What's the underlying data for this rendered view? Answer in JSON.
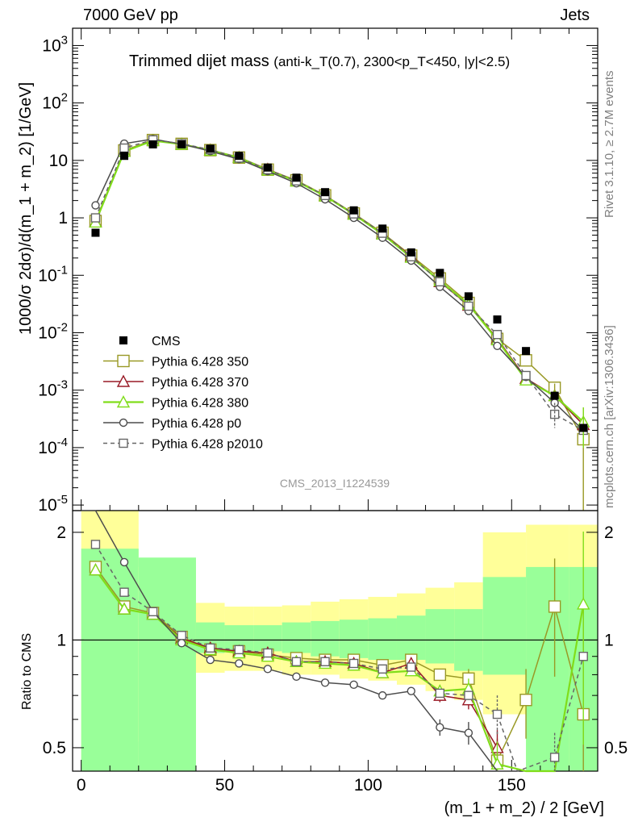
{
  "header": {
    "left": "7000 GeV pp",
    "right": "Jets",
    "title_main": "Trimmed dijet mass",
    "title_sub": "(anti-k_T(0.7), 2300<p_T<450, |y|<2.5)",
    "watermark": "CMS_2013_I1224539",
    "side_rivet": "Rivet 3.1.10, ≥ 2.7M events",
    "side_mcplots": "mcplots.cern.ch [arXiv:1306.3436]"
  },
  "axes": {
    "xlabel": "(m_1 + m_2) / 2 [GeV]",
    "ylabel_main": "1000/σ 2dσ)/d(m_1 + m_2) [1/GeV]",
    "ylabel_ratio": "Ratio to CMS"
  },
  "chart_data": {
    "type": "line",
    "x": [
      5,
      15,
      25,
      35,
      45,
      55,
      65,
      75,
      85,
      95,
      105,
      115,
      125,
      135,
      145,
      155,
      165,
      175
    ],
    "xlim": [
      -3,
      180
    ],
    "main_ylim": [
      8e-06,
      2000
    ],
    "main_yscale": "log",
    "main_yticks": [
      "10^-5",
      "10^-4",
      "10^-3",
      "10^-2",
      "10^-1",
      "1",
      "10",
      "10^2",
      "10^3"
    ],
    "ratio_ylim": [
      0.43,
      2.3
    ],
    "ratio_yticks": [
      "0.5",
      "1",
      "2"
    ],
    "xticks": [
      "0",
      "50",
      "100",
      "150"
    ],
    "reference": {
      "name": "CMS",
      "values": [
        0.55,
        12,
        19,
        19,
        16,
        12,
        7.5,
        5,
        2.8,
        1.35,
        0.65,
        0.25,
        0.11,
        0.043,
        0.017,
        0.0048,
        0.0008,
        0.00022
      ]
    },
    "series": [
      {
        "name": "Pythia 6.428 350",
        "color": "#999926",
        "marker": "square",
        "dash": false,
        "values": [
          0.88,
          14.9,
          22.6,
          19.4,
          15.1,
          11.2,
          6.9,
          4.5,
          2.46,
          1.19,
          0.55,
          0.22,
          0.088,
          0.033,
          0.0078,
          0.0033,
          0.0011,
          0.00014
        ],
        "ratio_x": [
          5,
          15,
          25,
          35,
          45,
          55,
          65,
          75,
          85,
          95,
          105,
          115,
          125,
          135,
          145,
          155,
          165,
          175
        ],
        "ratio": [
          1.6,
          1.24,
          1.19,
          1.02,
          0.94,
          0.93,
          0.91,
          0.89,
          0.88,
          0.88,
          0.85,
          0.88,
          0.8,
          0.78,
          0.46,
          0.68,
          1.24,
          0.62
        ],
        "ratio_err": [
          0,
          0,
          0,
          0,
          0,
          0,
          0,
          0,
          0,
          0,
          0,
          0,
          0,
          0.05,
          0.07,
          0.15,
          0.45,
          0.7
        ]
      },
      {
        "name": "Pythia 6.428 370",
        "color": "#991a26",
        "marker": "triangle",
        "dash": false,
        "values": [
          0.85,
          14.4,
          22.2,
          19.2,
          15.2,
          11.3,
          7.0,
          4.4,
          2.43,
          1.17,
          0.53,
          0.215,
          0.077,
          0.03,
          0.0079,
          0.0016,
          0.0008,
          0.00025
        ],
        "ratio_x": [
          5,
          15,
          25,
          35,
          45,
          55,
          65,
          75,
          85,
          95,
          105,
          115,
          125,
          135,
          145
        ],
        "ratio": [
          1.57,
          1.22,
          1.18,
          1.01,
          0.95,
          0.93,
          0.92,
          0.87,
          0.87,
          0.86,
          0.81,
          0.86,
          0.7,
          0.68,
          0.5
        ],
        "ratio_err": [
          0,
          0,
          0,
          0,
          0,
          0,
          0,
          0,
          0,
          0,
          0,
          0,
          0.03,
          0.04,
          0.06
        ]
      },
      {
        "name": "Pythia 6.428 380",
        "color": "#80dd1a",
        "marker": "triangle",
        "dash": false,
        "values": [
          0.84,
          14.3,
          22.0,
          19.1,
          15.0,
          11.2,
          6.8,
          4.35,
          2.4,
          1.15,
          0.52,
          0.205,
          0.08,
          0.031,
          0.0075,
          0.0015,
          0.0008,
          0.00028
        ],
        "ratio_x": [
          5,
          15,
          25,
          35,
          45,
          55,
          65,
          75,
          85,
          95,
          105,
          115,
          125,
          135,
          145,
          155,
          165,
          175
        ],
        "ratio": [
          1.57,
          1.22,
          1.18,
          1.0,
          0.94,
          0.92,
          0.9,
          0.87,
          0.86,
          0.85,
          0.81,
          0.82,
          0.72,
          0.73,
          0.45,
          0.3,
          0.3,
          1.26
        ],
        "ratio_err": [
          0,
          0,
          0,
          0,
          0,
          0,
          0,
          0,
          0,
          0,
          0,
          0,
          0.03,
          0.05,
          0.07,
          0,
          0,
          0.75
        ]
      },
      {
        "name": "Pythia 6.428 p0",
        "color": "#4d4d4d",
        "marker": "circle",
        "dash": false,
        "values": [
          1.65,
          19.6,
          23.5,
          19.2,
          14.5,
          10.5,
          6.5,
          4.0,
          2.1,
          1.0,
          0.45,
          0.18,
          0.063,
          0.024,
          0.0059,
          0.0017,
          0.0006,
          0.0002
        ],
        "ratio_x": [
          0,
          5,
          15,
          25,
          35,
          45,
          55,
          65,
          75,
          85,
          95,
          105,
          115,
          125,
          135,
          145,
          152
        ],
        "ratio": [
          2.6,
          2.5,
          1.65,
          1.2,
          0.98,
          0.88,
          0.86,
          0.83,
          0.79,
          0.76,
          0.75,
          0.7,
          0.72,
          0.57,
          0.55,
          0.34,
          0.3
        ],
        "ratio_err": [
          0,
          0,
          0,
          0,
          0,
          0,
          0,
          0,
          0,
          0,
          0,
          0,
          0,
          0.03,
          0.04,
          0,
          0
        ]
      },
      {
        "name": "Pythia 6.428 p2010",
        "color": "#666666",
        "marker": "square-open",
        "dash": true,
        "values": [
          1.0,
          16.4,
          22.8,
          19.6,
          15.4,
          11.0,
          6.9,
          4.4,
          2.45,
          1.17,
          0.54,
          0.21,
          0.077,
          0.029,
          0.0093,
          0.0018,
          0.00038,
          0.0002
        ],
        "ratio_x": [
          5,
          15,
          25,
          35,
          45,
          55,
          65,
          75,
          85,
          95,
          105,
          115,
          125,
          135,
          145,
          152,
          165,
          175
        ],
        "ratio": [
          1.85,
          1.36,
          1.2,
          1.03,
          0.95,
          0.94,
          0.92,
          0.87,
          0.87,
          0.86,
          0.83,
          0.84,
          0.71,
          0.7,
          0.62,
          0.3,
          0.47,
          0.9
        ],
        "ratio_err": [
          0,
          0,
          0,
          0,
          0,
          0,
          0,
          0,
          0,
          0,
          0,
          0,
          0,
          0,
          0.08,
          0,
          0.08,
          0
        ]
      }
    ],
    "bands": {
      "edges": [
        0,
        20,
        40,
        50,
        60,
        70,
        80,
        90,
        100,
        110,
        120,
        130,
        140,
        155,
        170,
        180
      ],
      "green_low": [
        0.3,
        0.3,
        0.92,
        0.93,
        0.93,
        0.92,
        0.9,
        0.89,
        0.88,
        0.88,
        0.86,
        0.82,
        0.8,
        0.3,
        0.3
      ],
      "green_high": [
        1.8,
        1.7,
        1.12,
        1.1,
        1.1,
        1.12,
        1.13,
        1.14,
        1.15,
        1.17,
        1.22,
        1.22,
        1.5,
        1.6,
        1.6
      ],
      "yellow_low": [
        0.3,
        0.52,
        0.81,
        0.82,
        0.82,
        0.8,
        0.8,
        0.78,
        0.77,
        0.75,
        0.72,
        0.68,
        0.62,
        0.3,
        0.3
      ],
      "yellow_high": [
        2.3,
        1.6,
        1.27,
        1.24,
        1.24,
        1.25,
        1.28,
        1.3,
        1.32,
        1.35,
        1.4,
        1.45,
        2.0,
        2.1,
        2.1
      ]
    }
  }
}
